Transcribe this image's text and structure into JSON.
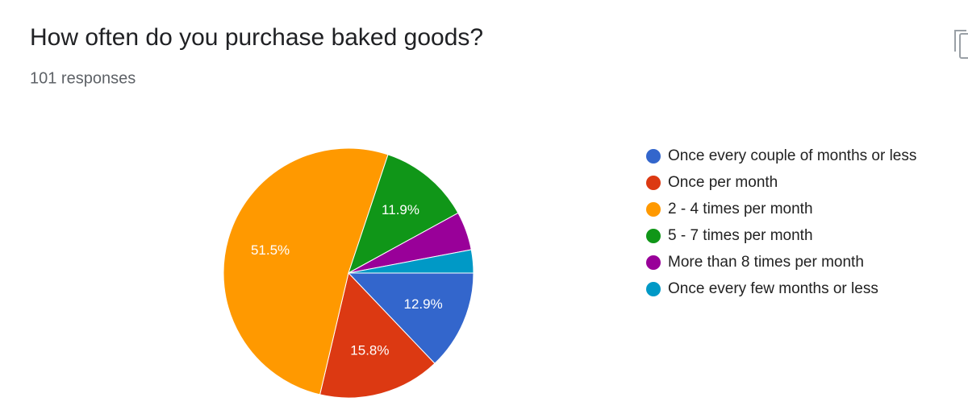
{
  "chart_data": {
    "type": "pie",
    "title": "How often do you purchase baked goods?",
    "subtitle": "101 responses",
    "categories": [
      "Once every couple of months or less",
      "Once per month",
      "2 - 4 times per month",
      "5 - 7 times per month",
      "More than 8 times per month",
      "Once every few months or less"
    ],
    "values": [
      12.9,
      15.8,
      51.5,
      11.9,
      5.0,
      3.0
    ],
    "value_labels": [
      "12.9%",
      "15.8%",
      "51.5%",
      "11.9%",
      null,
      null
    ],
    "colors": [
      "#3366cc",
      "#dc3912",
      "#ff9900",
      "#109618",
      "#990099",
      "#0099c6"
    ],
    "legend": "right"
  }
}
